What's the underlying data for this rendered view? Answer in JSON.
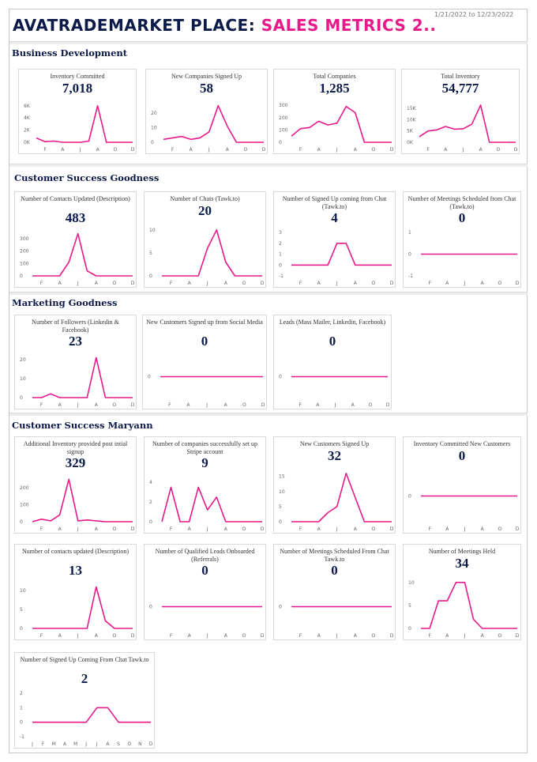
{
  "header": {
    "title_part1": "AVATRADEMARKET PLACE: ",
    "title_part2": "SALES METRICS 2..",
    "date_range": "1/21/2022 to 12/23/2022",
    "accent": "#e8198b",
    "brand": "#0c1a4a"
  },
  "sections": [
    {
      "title": "Business Development"
    },
    {
      "title": "Customer Success Goodness"
    },
    {
      "title": "Marketing Goodness"
    },
    {
      "title": "Customer Success Maryann"
    }
  ],
  "chart_data": [
    {
      "type": "line",
      "title": "Inventory Committed",
      "kpi": "7,018",
      "categories": [
        "J",
        "F",
        "M",
        "A",
        "M",
        "J",
        "J",
        "A",
        "S",
        "O",
        "N",
        "D"
      ],
      "x_labels": [
        "F",
        "A",
        "J",
        "A",
        "O",
        "D"
      ],
      "y_ticks": [
        "6K",
        "4K",
        "2K",
        "0K"
      ],
      "ylim": [
        0,
        6500
      ],
      "values": [
        700,
        100,
        200,
        0,
        0,
        0,
        200,
        6000,
        0,
        0,
        0,
        0
      ]
    },
    {
      "type": "line",
      "title": "New Companies Signed Up",
      "kpi": "58",
      "categories": [
        "J",
        "F",
        "M",
        "A",
        "M",
        "J",
        "J",
        "A",
        "S",
        "O",
        "N",
        "D"
      ],
      "x_labels": [
        "F",
        "A",
        "J",
        "A",
        "O",
        "D"
      ],
      "y_ticks": [
        "20",
        "10",
        "0"
      ],
      "ylim": [
        0,
        27
      ],
      "values": [
        2,
        3,
        4,
        2,
        3,
        7,
        25,
        11,
        0,
        0,
        0,
        0
      ]
    },
    {
      "type": "line",
      "title": "Total Companies",
      "kpi": "1,285",
      "categories": [
        "J",
        "F",
        "M",
        "A",
        "M",
        "J",
        "J",
        "A",
        "S",
        "O",
        "N",
        "D"
      ],
      "x_labels": [
        "F",
        "A",
        "J",
        "A",
        "O",
        "D"
      ],
      "y_ticks": [
        "300",
        "200",
        "100",
        "0"
      ],
      "ylim": [
        0,
        320
      ],
      "values": [
        50,
        110,
        120,
        170,
        140,
        155,
        290,
        240,
        0,
        0,
        0,
        0
      ]
    },
    {
      "type": "line",
      "title": "Total Inventory",
      "kpi": "54,777",
      "categories": [
        "J",
        "F",
        "M",
        "A",
        "M",
        "J",
        "J",
        "A",
        "S",
        "O",
        "N",
        "D"
      ],
      "x_labels": [
        "F",
        "A",
        "J",
        "A",
        "O",
        "D"
      ],
      "y_ticks": [
        "15K",
        "10K",
        "5K",
        "0K"
      ],
      "ylim": [
        0,
        17500
      ],
      "values": [
        2500,
        5000,
        5500,
        7000,
        5800,
        6000,
        8000,
        16500,
        0,
        0,
        0,
        0
      ]
    },
    {
      "type": "line",
      "title": "Number of Contacts Updated (Description)",
      "kpi": "483",
      "categories": [
        "J",
        "F",
        "M",
        "A",
        "M",
        "J",
        "J",
        "A",
        "S",
        "O",
        "N",
        "D"
      ],
      "x_labels": [
        "F",
        "A",
        "J",
        "A",
        "O",
        "D"
      ],
      "y_ticks": [
        "300",
        "200",
        "100",
        "0"
      ],
      "ylim": [
        0,
        350
      ],
      "values": [
        0,
        0,
        0,
        0,
        110,
        340,
        40,
        0,
        0,
        0,
        0,
        0
      ]
    },
    {
      "type": "line",
      "title": "Number of Chats (Tawk.to)",
      "kpi": "20",
      "categories": [
        "J",
        "F",
        "M",
        "A",
        "M",
        "J",
        "J",
        "A",
        "S",
        "O",
        "N",
        "D"
      ],
      "x_labels": [
        "F",
        "A",
        "J",
        "A",
        "O",
        "D"
      ],
      "y_ticks": [
        "10",
        "5",
        "0"
      ],
      "ylim": [
        0,
        11
      ],
      "values": [
        0,
        0,
        0,
        0,
        0,
        6,
        10,
        3,
        0,
        0,
        0,
        0
      ]
    },
    {
      "type": "line",
      "title": "Number of Signed Up coming from Chat (Tawk.to)",
      "kpi": "4",
      "categories": [
        "J",
        "F",
        "M",
        "A",
        "M",
        "J",
        "J",
        "A",
        "S",
        "O",
        "N",
        "D"
      ],
      "x_labels": [
        "F",
        "A",
        "J",
        "A",
        "O",
        "D"
      ],
      "y_ticks": [
        "3",
        "2",
        "1",
        "0",
        "-1"
      ],
      "ylim": [
        -1,
        3
      ],
      "values": [
        0,
        0,
        0,
        0,
        0,
        2,
        2,
        0,
        0,
        0,
        0,
        0
      ]
    },
    {
      "type": "line",
      "title": "Number of Meetings Scheduled from Chat (Tawk.to)",
      "kpi": "0",
      "categories": [
        "J",
        "F",
        "M",
        "A",
        "M",
        "J",
        "J",
        "A",
        "S",
        "O",
        "N",
        "D"
      ],
      "x_labels": [
        "F",
        "A",
        "J",
        "A",
        "O",
        "D"
      ],
      "y_ticks": [
        "1",
        "0",
        "-1"
      ],
      "ylim": [
        -1,
        1
      ],
      "values": [
        0,
        0,
        0,
        0,
        0,
        0,
        0,
        0,
        0,
        0,
        0,
        0
      ]
    },
    {
      "type": "line",
      "title": "Number of Followers (Linkedin & Facebook)",
      "kpi": "23",
      "categories": [
        "J",
        "F",
        "M",
        "A",
        "M",
        "J",
        "J",
        "A",
        "S",
        "O",
        "N",
        "D"
      ],
      "x_labels": [
        "F",
        "A",
        "J",
        "A",
        "O",
        "D"
      ],
      "y_ticks": [
        "20",
        "10",
        "0"
      ],
      "ylim": [
        0,
        22
      ],
      "values": [
        0,
        0,
        2,
        0,
        0,
        0,
        0,
        21,
        0,
        0,
        0,
        0
      ]
    },
    {
      "type": "line",
      "title": "New Customers Signed up from Social Media",
      "kpi": "0",
      "categories": [
        "J",
        "F",
        "M",
        "A",
        "M",
        "J",
        "J",
        "A",
        "S",
        "O",
        "N",
        "D"
      ],
      "x_labels": [
        "F",
        "A",
        "J",
        "A",
        "O",
        "D"
      ],
      "y_ticks": [
        "0"
      ],
      "ylim": [
        -1,
        1
      ],
      "values": [
        0,
        0,
        0,
        0,
        0,
        0,
        0,
        0,
        0,
        0,
        0,
        0
      ]
    },
    {
      "type": "line",
      "title": "Leads (Mass Mailer, Linkedin, Facebook)",
      "kpi": "0",
      "categories": [
        "J",
        "F",
        "M",
        "A",
        "M",
        "J",
        "J",
        "A",
        "S",
        "O",
        "N",
        "D"
      ],
      "x_labels": [
        "F",
        "A",
        "J",
        "A",
        "O",
        "D"
      ],
      "y_ticks": [
        "0"
      ],
      "ylim": [
        -1,
        1
      ],
      "values": [
        0,
        0,
        0,
        0,
        0,
        0,
        0,
        0,
        0,
        0,
        0,
        0
      ]
    },
    {
      "type": "line",
      "title": "Additional Inventory provided post intial signup",
      "kpi": "329",
      "categories": [
        "J",
        "F",
        "M",
        "A",
        "M",
        "J",
        "J",
        "A",
        "S",
        "O",
        "N",
        "D"
      ],
      "x_labels": [
        "F",
        "A",
        "J",
        "A",
        "O",
        "D"
      ],
      "y_ticks": [
        "200",
        "100",
        "0"
      ],
      "ylim": [
        0,
        260
      ],
      "values": [
        0,
        15,
        5,
        40,
        250,
        5,
        10,
        5,
        0,
        0,
        0,
        0
      ]
    },
    {
      "type": "line",
      "title": "Number of companies successfully set up Stripe account",
      "kpi": "9",
      "categories": [
        "J",
        "F",
        "M",
        "A",
        "M",
        "J",
        "J",
        "A",
        "S",
        "O",
        "N",
        "D"
      ],
      "x_labels": [
        "F",
        "A",
        "J",
        "A",
        "O",
        "D"
      ],
      "y_ticks": [
        "4",
        "2",
        "0"
      ],
      "ylim": [
        0,
        4.5
      ],
      "values": [
        0,
        3.5,
        0,
        0,
        3.5,
        1.2,
        2.5,
        0,
        0,
        0,
        0,
        0
      ]
    },
    {
      "type": "line",
      "title": "New Customers Signed Up",
      "kpi": "32",
      "categories": [
        "J",
        "F",
        "M",
        "A",
        "M",
        "J",
        "J",
        "A",
        "S",
        "O",
        "N",
        "D"
      ],
      "x_labels": [
        "F",
        "A",
        "J",
        "A",
        "O",
        "D"
      ],
      "y_ticks": [
        "15",
        "10",
        "5",
        "0"
      ],
      "ylim": [
        0,
        17
      ],
      "values": [
        0,
        0,
        0,
        0,
        3,
        5,
        16,
        8,
        0,
        0,
        0,
        0
      ]
    },
    {
      "type": "line",
      "title": "Inventory Committed New Customers",
      "kpi": "0",
      "categories": [
        "J",
        "F",
        "M",
        "A",
        "M",
        "J",
        "J",
        "A",
        "S",
        "O",
        "N",
        "D"
      ],
      "x_labels": [
        "F",
        "A",
        "J",
        "A",
        "O",
        "D"
      ],
      "y_ticks": [
        "0"
      ],
      "ylim": [
        -1,
        1
      ],
      "values": [
        0,
        0,
        0,
        0,
        0,
        0,
        0,
        0,
        0,
        0,
        0,
        0
      ]
    },
    {
      "type": "line",
      "title": "Number of contacts updated (Description)",
      "kpi": "13",
      "categories": [
        "J",
        "F",
        "M",
        "A",
        "M",
        "J",
        "J",
        "A",
        "S",
        "O",
        "N",
        "D"
      ],
      "x_labels": [
        "F",
        "A",
        "J",
        "A",
        "O",
        "D"
      ],
      "y_ticks": [
        "10",
        "5",
        "0"
      ],
      "ylim": [
        0,
        11.5
      ],
      "values": [
        0,
        0,
        0,
        0,
        0,
        0,
        0,
        11,
        2,
        0,
        0,
        0
      ]
    },
    {
      "type": "line",
      "title": "Number of Qualified Leads Onboarded (Referrals)",
      "kpi": "0",
      "categories": [
        "J",
        "F",
        "M",
        "A",
        "M",
        "J",
        "J",
        "A",
        "S",
        "O",
        "N",
        "D"
      ],
      "x_labels": [
        "F",
        "A",
        "J",
        "A",
        "O",
        "D"
      ],
      "y_ticks": [
        "0"
      ],
      "ylim": [
        -1,
        1
      ],
      "values": [
        0,
        0,
        0,
        0,
        0,
        0,
        0,
        0,
        0,
        0,
        0,
        0
      ]
    },
    {
      "type": "line",
      "title": "Number of Meetings Scheduled From Chat Tawk.to",
      "kpi": "0",
      "categories": [
        "J",
        "F",
        "M",
        "A",
        "M",
        "J",
        "J",
        "A",
        "S",
        "O",
        "N",
        "D"
      ],
      "x_labels": [
        "F",
        "A",
        "J",
        "A",
        "O",
        "D"
      ],
      "y_ticks": [
        "0"
      ],
      "ylim": [
        -1,
        1
      ],
      "values": [
        0,
        0,
        0,
        0,
        0,
        0,
        0,
        0,
        0,
        0,
        0,
        0
      ]
    },
    {
      "type": "line",
      "title": "Number of Meetings Held",
      "kpi": "34",
      "categories": [
        "J",
        "F",
        "M",
        "A",
        "M",
        "J",
        "J",
        "A",
        "S",
        "O",
        "N",
        "D"
      ],
      "x_labels": [
        "F",
        "A",
        "J",
        "A",
        "O",
        "D"
      ],
      "y_ticks": [
        "10",
        "5",
        "0"
      ],
      "ylim": [
        0,
        11
      ],
      "values": [
        0,
        0,
        6,
        6,
        10,
        10,
        2,
        0,
        0,
        0,
        0,
        0
      ]
    },
    {
      "type": "line",
      "title": "Number of Signed Up Coming From Chat Tawk.to",
      "kpi": "2",
      "categories": [
        "J",
        "F",
        "M",
        "A",
        "M",
        "J",
        "J",
        "A",
        "S",
        "O",
        "N",
        "D"
      ],
      "x_labels": [
        "J",
        "F",
        "M",
        "A",
        "M",
        "J",
        "J",
        "A",
        "S",
        "O",
        "N",
        "D"
      ],
      "y_ticks": [
        "2",
        "1",
        "0",
        "-1"
      ],
      "ylim": [
        -1,
        2
      ],
      "values": [
        0,
        0,
        0,
        0,
        0,
        0,
        1,
        1,
        0,
        0,
        0,
        0
      ]
    }
  ]
}
